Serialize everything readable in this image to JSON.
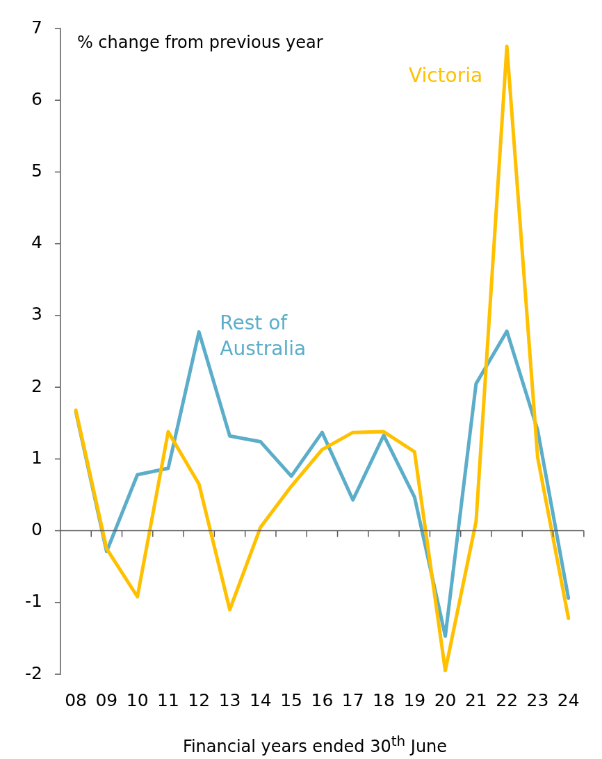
{
  "chart_data": {
    "type": "line",
    "ylabel": "% change from previous year",
    "xlabel": "Financial years ended 30$^{th}$ June",
    "categories": [
      "08",
      "09",
      "10",
      "11",
      "12",
      "13",
      "14",
      "15",
      "16",
      "17",
      "18",
      "19",
      "20",
      "21",
      "22",
      "23",
      "24"
    ],
    "series": [
      {
        "name": "Victoria",
        "color": "#ffc000",
        "values": [
          1.68,
          -0.25,
          -0.92,
          1.38,
          0.65,
          -1.1,
          0.05,
          0.62,
          1.13,
          1.37,
          1.38,
          1.1,
          -1.95,
          0.13,
          6.75,
          1.02,
          -1.22
        ]
      },
      {
        "name": "Rest of Australia",
        "color": "#5badc9",
        "values": [
          1.66,
          -0.29,
          0.78,
          0.87,
          2.77,
          1.32,
          1.24,
          0.76,
          1.37,
          0.43,
          1.33,
          0.47,
          -1.47,
          2.05,
          2.78,
          1.4,
          -0.94
        ]
      }
    ],
    "ref_lines": [
      {
        "axis": "y",
        "value": 0,
        "color": "#595959",
        "line_style": "solid"
      }
    ],
    "ylim": [
      -2,
      7
    ],
    "yticks": [
      -2,
      -1,
      0,
      1,
      2,
      3,
      4,
      5,
      6,
      7
    ],
    "grid": false,
    "legend": false,
    "marker": "none",
    "line_style": "solid"
  }
}
